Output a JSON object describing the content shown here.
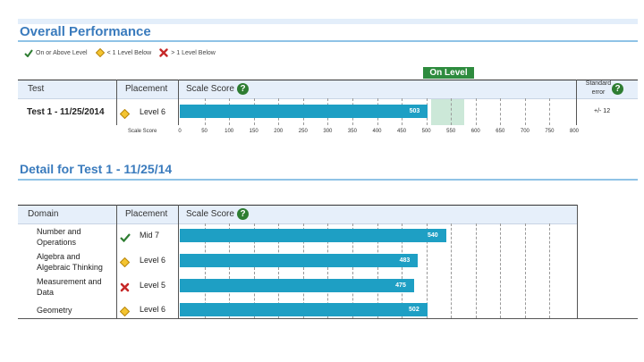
{
  "overall": {
    "title": "Overall Performance",
    "legend": [
      {
        "icon": "check-icon",
        "label": "On or Above Level"
      },
      {
        "icon": "diamond-icon",
        "label": "< 1 Level Below"
      },
      {
        "icon": "x-icon",
        "label": "> 1 Level Below"
      }
    ],
    "on_level_label": "On Level",
    "headers": {
      "test": "Test",
      "placement": "Placement",
      "scale_score": "Scale Score",
      "std_error": "Standard error"
    },
    "row": {
      "test": "Test 1 - 11/25/2014",
      "placement": "Level 6",
      "score": "503",
      "score_value": 503,
      "std_error": "+/- 12",
      "status": "below"
    },
    "axis_label": "Scale Score",
    "ticks": [
      "0",
      "50",
      "100",
      "150",
      "200",
      "250",
      "300",
      "350",
      "400",
      "450",
      "500",
      "550",
      "600",
      "650",
      "700",
      "750",
      "800"
    ]
  },
  "detail": {
    "title": "Detail for Test 1 - 11/25/14",
    "headers": {
      "domain": "Domain",
      "placement": "Placement",
      "scale_score": "Scale Score"
    },
    "rows": [
      {
        "domain": [
          "Number and",
          "Operations"
        ],
        "status": "on",
        "placement": "Mid 7",
        "score": "540",
        "score_value": 540
      },
      {
        "domain": [
          "Algebra and",
          "Algebraic Thinking"
        ],
        "status": "below",
        "placement": "Level 6",
        "score": "483",
        "score_value": 483
      },
      {
        "domain": [
          "Measurement and",
          "Data"
        ],
        "status": "far",
        "placement": "Level 5",
        "score": "475",
        "score_value": 475
      },
      {
        "domain": [
          "Geometry"
        ],
        "status": "below",
        "placement": "Level 6",
        "score": "502",
        "score_value": 502
      }
    ]
  },
  "colors": {
    "bar": "#1e9fc4",
    "accent": "#3a7bbd",
    "on_level": "#2e8b3e"
  }
}
